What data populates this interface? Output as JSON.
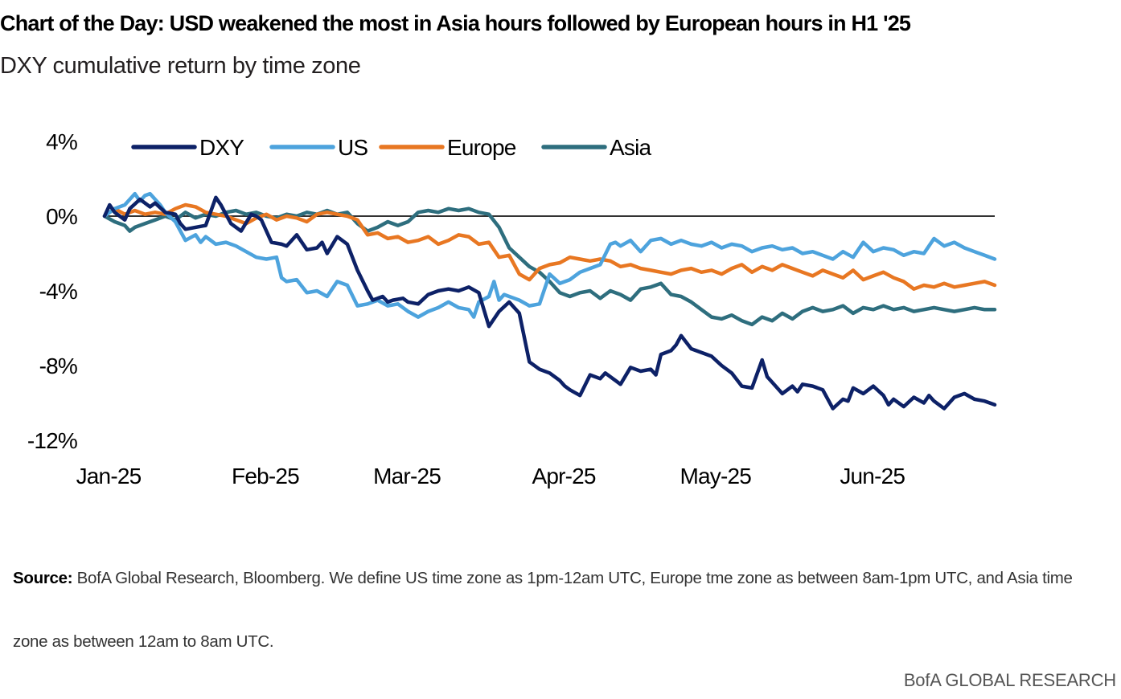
{
  "header": {
    "title": "Chart of the Day: USD weakened the most in Asia hours followed by European hours in H1 '25",
    "subtitle": "DXY cumulative return by time zone"
  },
  "footer": {
    "source_label": "Source:",
    "source_text": "BofA Global Research, Bloomberg. We define US time zone as 1pm-12am UTC, Europe tme zone as between 8am-1pm UTC, and Asia time zone as between 12am to 8am UTC.",
    "brand": "BofA GLOBAL RESEARCH"
  },
  "chart_data": {
    "type": "line",
    "title": "DXY cumulative return by time zone",
    "xlabel": "",
    "ylabel": "",
    "x_ticks": [
      "Jan-25",
      "Feb-25",
      "Mar-25",
      "Apr-25",
      "May-25",
      "Jun-25"
    ],
    "x_tick_days": [
      0,
      31,
      59,
      90,
      120,
      151
    ],
    "xlim": [
      0,
      176
    ],
    "ylim": [
      -12,
      4
    ],
    "y_ticks": [
      4,
      0,
      -4,
      -8,
      -12
    ],
    "y_tick_labels": [
      "4%",
      "0%",
      "-4%",
      "-8%",
      "-12%"
    ],
    "zero_line": true,
    "legend_position": "top",
    "series": [
      {
        "name": "DXY",
        "color": "#0d2167",
        "days": [
          0,
          1,
          2,
          4,
          5,
          7,
          9,
          10,
          12,
          14,
          15,
          16,
          18,
          20,
          22,
          23,
          25,
          27,
          29,
          30,
          31,
          33,
          35,
          36,
          38,
          40,
          42,
          43,
          44,
          46,
          48,
          50,
          52,
          53,
          55,
          56,
          57,
          59,
          60,
          62,
          64,
          66,
          68,
          70,
          72,
          74,
          76,
          78,
          80,
          82,
          84,
          86,
          88,
          90,
          91,
          92,
          94,
          96,
          98,
          99,
          100,
          101,
          102,
          104,
          106,
          108,
          109,
          110,
          112,
          113,
          114,
          116,
          118,
          120,
          122,
          124,
          126,
          128,
          130,
          131,
          132,
          134,
          136,
          137,
          138,
          140,
          142,
          144,
          146,
          147,
          148,
          150,
          152,
          154,
          155,
          156,
          158,
          160,
          162,
          163,
          164,
          166,
          168,
          170,
          172,
          174,
          176
        ],
        "values": [
          0.0,
          0.6,
          0.2,
          -0.2,
          0.4,
          0.9,
          0.5,
          0.7,
          0.2,
          0.1,
          -0.4,
          -0.7,
          -0.6,
          -0.5,
          1.0,
          0.6,
          -0.4,
          -0.8,
          0.1,
          0.0,
          -0.2,
          -1.4,
          -1.5,
          -1.6,
          -1.0,
          -1.8,
          -1.7,
          -1.4,
          -2.0,
          -1.1,
          -1.5,
          -2.9,
          -4.0,
          -4.5,
          -4.3,
          -4.6,
          -4.5,
          -4.4,
          -4.6,
          -4.7,
          -4.2,
          -4.0,
          -3.9,
          -4.0,
          -3.8,
          -4.1,
          -5.9,
          -5.1,
          -4.6,
          -5.2,
          -7.8,
          -8.2,
          -8.4,
          -8.8,
          -9.1,
          -9.3,
          -9.6,
          -8.5,
          -8.7,
          -8.4,
          -8.6,
          -8.8,
          -9.0,
          -8.1,
          -8.3,
          -8.2,
          -8.5,
          -7.4,
          -7.2,
          -6.9,
          -6.4,
          -7.1,
          -7.3,
          -7.5,
          -8.0,
          -8.4,
          -9.1,
          -9.2,
          -7.7,
          -8.6,
          -8.9,
          -9.5,
          -9.1,
          -9.4,
          -9.0,
          -9.1,
          -9.3,
          -10.3,
          -9.8,
          -9.9,
          -9.2,
          -9.5,
          -9.1,
          -9.6,
          -10.1,
          -9.8,
          -10.2,
          -9.7,
          -10.0,
          -9.6,
          -9.9,
          -10.3,
          -9.7,
          -9.5,
          -9.8,
          -9.9,
          -10.1
        ]
      },
      {
        "name": "US",
        "color": "#4da3dd",
        "days": [
          0,
          2,
          4,
          6,
          7,
          8,
          9,
          10,
          11,
          12,
          14,
          16,
          18,
          19,
          20,
          21,
          22,
          24,
          26,
          28,
          30,
          32,
          34,
          35,
          36,
          38,
          40,
          42,
          44,
          46,
          48,
          50,
          52,
          54,
          56,
          58,
          60,
          62,
          64,
          66,
          68,
          70,
          72,
          73,
          74,
          76,
          77,
          78,
          79,
          80,
          82,
          84,
          86,
          88,
          90,
          92,
          94,
          96,
          98,
          100,
          101,
          102,
          104,
          106,
          108,
          110,
          112,
          114,
          116,
          118,
          120,
          122,
          124,
          126,
          128,
          130,
          132,
          134,
          136,
          138,
          140,
          142,
          144,
          146,
          148,
          150,
          152,
          154,
          156,
          158,
          160,
          162,
          164,
          166,
          168,
          170,
          172,
          174,
          176
        ],
        "values": [
          0.0,
          0.4,
          0.6,
          1.2,
          0.8,
          1.1,
          1.2,
          0.9,
          0.6,
          0.2,
          -0.3,
          -1.3,
          -1.0,
          -1.4,
          -1.1,
          -1.3,
          -1.5,
          -1.4,
          -1.6,
          -1.9,
          -2.2,
          -2.3,
          -2.2,
          -3.3,
          -3.5,
          -3.4,
          -4.1,
          -4.0,
          -4.3,
          -3.5,
          -3.7,
          -4.8,
          -4.7,
          -4.5,
          -4.8,
          -4.7,
          -5.1,
          -5.4,
          -5.1,
          -4.9,
          -4.6,
          -4.9,
          -5.0,
          -5.4,
          -4.6,
          -4.3,
          -3.5,
          -4.5,
          -4.2,
          -4.3,
          -4.5,
          -4.8,
          -4.7,
          -3.1,
          -3.6,
          -3.4,
          -3.0,
          -2.8,
          -2.6,
          -1.5,
          -1.4,
          -1.6,
          -1.3,
          -1.9,
          -1.3,
          -1.2,
          -1.5,
          -1.3,
          -1.5,
          -1.6,
          -1.4,
          -1.7,
          -1.5,
          -1.6,
          -1.9,
          -1.7,
          -1.6,
          -1.8,
          -1.7,
          -2.0,
          -1.9,
          -2.1,
          -2.3,
          -1.9,
          -2.2,
          -1.4,
          -1.9,
          -1.7,
          -1.8,
          -2.1,
          -1.9,
          -2.0,
          -1.2,
          -1.6,
          -1.4,
          -1.7,
          -1.9,
          -2.1,
          -2.3
        ]
      },
      {
        "name": "Europe",
        "color": "#e87722",
        "days": [
          0,
          2,
          4,
          6,
          8,
          10,
          12,
          14,
          16,
          18,
          20,
          22,
          24,
          26,
          28,
          30,
          32,
          34,
          36,
          38,
          40,
          42,
          44,
          46,
          48,
          50,
          52,
          54,
          56,
          58,
          60,
          62,
          64,
          66,
          68,
          70,
          72,
          74,
          76,
          78,
          80,
          82,
          84,
          86,
          88,
          90,
          92,
          94,
          96,
          98,
          100,
          102,
          104,
          106,
          108,
          110,
          112,
          114,
          116,
          118,
          120,
          122,
          124,
          126,
          128,
          130,
          132,
          134,
          136,
          138,
          140,
          142,
          144,
          146,
          148,
          150,
          152,
          154,
          156,
          158,
          160,
          162,
          164,
          166,
          168,
          170,
          172,
          174,
          176
        ],
        "values": [
          0.0,
          0.4,
          0.1,
          0.3,
          0.1,
          0.2,
          0.1,
          0.4,
          0.6,
          0.5,
          0.2,
          0.1,
          0.0,
          -0.2,
          -0.4,
          -0.1,
          0.1,
          -0.2,
          0.0,
          -0.1,
          -0.3,
          0.1,
          0.2,
          0.1,
          0.0,
          -0.2,
          -1.0,
          -0.9,
          -1.2,
          -1.1,
          -1.4,
          -1.3,
          -1.1,
          -1.5,
          -1.3,
          -1.0,
          -1.1,
          -1.5,
          -1.4,
          -2.2,
          -2.1,
          -3.1,
          -3.4,
          -2.8,
          -2.6,
          -2.5,
          -2.2,
          -2.3,
          -2.4,
          -2.3,
          -2.4,
          -2.7,
          -2.6,
          -2.8,
          -2.9,
          -3.0,
          -3.1,
          -2.9,
          -2.8,
          -3.0,
          -2.9,
          -3.1,
          -2.8,
          -2.6,
          -3.0,
          -2.7,
          -2.9,
          -2.6,
          -2.8,
          -3.0,
          -3.2,
          -2.9,
          -3.1,
          -3.3,
          -2.9,
          -3.4,
          -3.2,
          -3.0,
          -3.3,
          -3.5,
          -3.9,
          -3.7,
          -3.8,
          -3.6,
          -3.8,
          -3.7,
          -3.6,
          -3.5,
          -3.7
        ]
      },
      {
        "name": "Asia",
        "color": "#2e6e7e",
        "days": [
          0,
          2,
          4,
          5,
          6,
          8,
          10,
          12,
          14,
          16,
          18,
          20,
          22,
          24,
          26,
          28,
          30,
          32,
          34,
          36,
          38,
          40,
          42,
          44,
          46,
          48,
          50,
          52,
          54,
          56,
          58,
          60,
          62,
          64,
          66,
          68,
          70,
          72,
          74,
          76,
          78,
          80,
          82,
          84,
          86,
          88,
          90,
          92,
          94,
          96,
          98,
          100,
          102,
          104,
          106,
          108,
          110,
          112,
          114,
          116,
          118,
          120,
          122,
          124,
          126,
          128,
          130,
          132,
          134,
          136,
          138,
          140,
          142,
          144,
          146,
          148,
          150,
          152,
          154,
          156,
          158,
          160,
          162,
          164,
          166,
          168,
          170,
          172,
          174,
          176
        ],
        "values": [
          0.0,
          -0.3,
          -0.5,
          -0.8,
          -0.6,
          -0.4,
          -0.2,
          0.0,
          -0.2,
          0.2,
          -0.1,
          0.1,
          0.0,
          0.2,
          0.3,
          0.1,
          0.2,
          0.0,
          -0.1,
          0.1,
          0.0,
          0.2,
          0.1,
          0.3,
          0.1,
          0.2,
          -0.4,
          -0.8,
          -0.6,
          -0.3,
          -0.5,
          -0.3,
          0.2,
          0.3,
          0.2,
          0.4,
          0.3,
          0.4,
          0.2,
          0.1,
          -0.6,
          -1.7,
          -2.2,
          -2.7,
          -3.0,
          -3.5,
          -4.1,
          -4.3,
          -4.1,
          -4.0,
          -4.4,
          -4.0,
          -4.2,
          -4.5,
          -3.9,
          -3.8,
          -3.6,
          -4.2,
          -4.3,
          -4.6,
          -5.0,
          -5.4,
          -5.5,
          -5.3,
          -5.6,
          -5.8,
          -5.4,
          -5.6,
          -5.2,
          -5.5,
          -5.1,
          -4.9,
          -5.1,
          -5.0,
          -4.8,
          -5.2,
          -4.9,
          -5.0,
          -4.8,
          -5.0,
          -4.9,
          -5.1,
          -5.0,
          -4.9,
          -5.0,
          -5.1,
          -5.0,
          -4.9,
          -5.0,
          -5.0
        ]
      }
    ]
  }
}
